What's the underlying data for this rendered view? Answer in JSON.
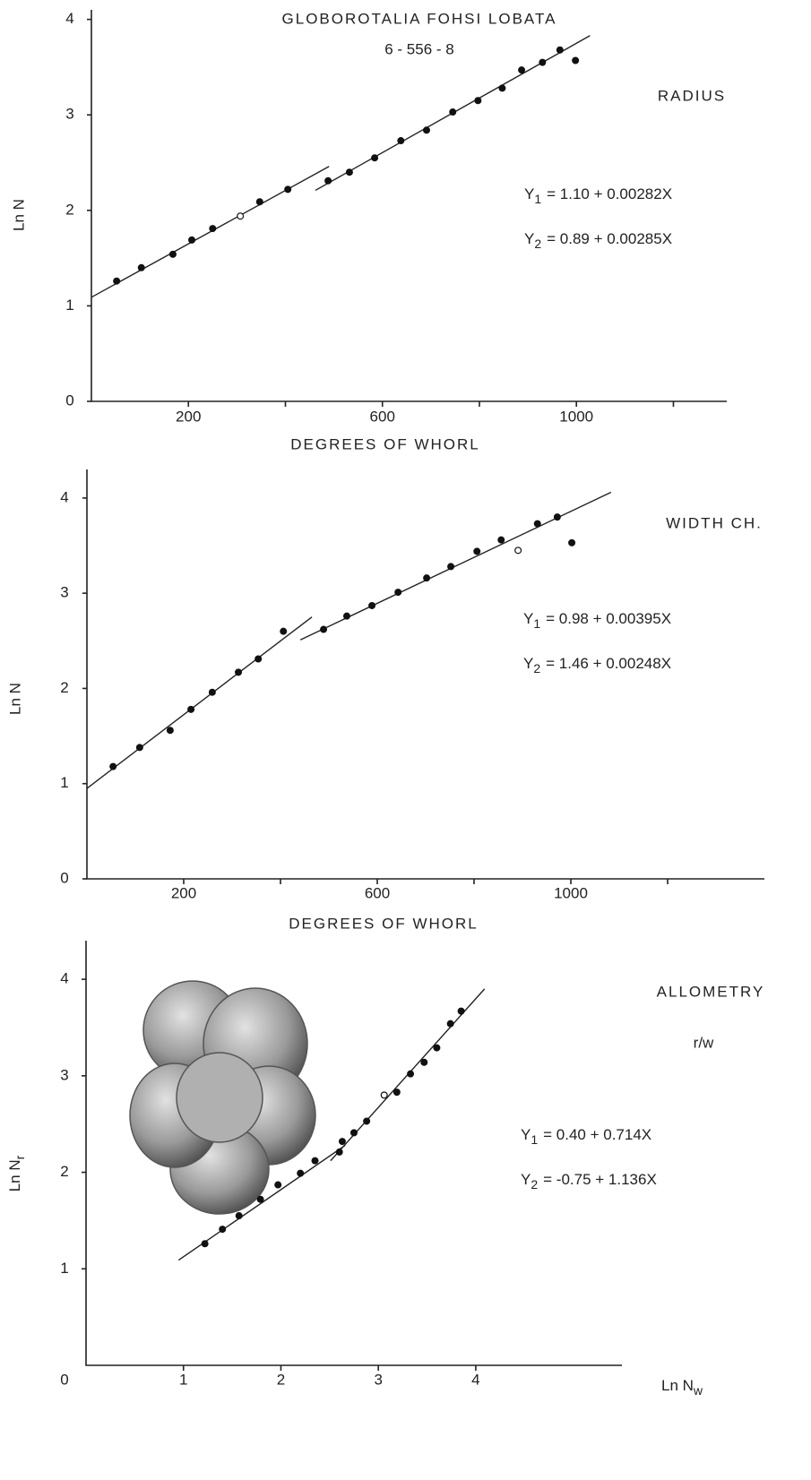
{
  "chart_data": [
    {
      "type": "scatter",
      "title": "GLOBOROTALIA FOHSI LOBATA",
      "subtitle": "6 - 556 - 8",
      "label": "RADIUS",
      "x_label": "DEGREES OF WHORL",
      "y_label": "Ln N",
      "equations": [
        {
          "lhs": "Y",
          "sub": "1",
          "rhs": "= 1.10 + 0.00282X"
        },
        {
          "lhs": "Y",
          "sub": "2",
          "rhs": "= 0.89 + 0.00285X"
        }
      ],
      "x": [
        52,
        103,
        168,
        207,
        250,
        307,
        347,
        405,
        488,
        532,
        584,
        638,
        691,
        745,
        797,
        847,
        887,
        930,
        966,
        998
      ],
      "values": [
        1.26,
        1.4,
        1.54,
        1.69,
        1.81,
        1.94,
        2.09,
        2.22,
        2.31,
        2.4,
        2.55,
        2.73,
        2.84,
        3.03,
        3.15,
        3.28,
        3.47,
        3.55,
        3.68,
        3.57
      ],
      "open_markers": [
        5
      ],
      "fit_lines": [
        {
          "x": [
            0,
            490
          ],
          "values": [
            1.09,
            2.46
          ]
        },
        {
          "x": [
            462,
            1028
          ],
          "values": [
            2.21,
            3.83
          ]
        }
      ],
      "xlim": [
        0,
        1310
      ],
      "ylim": [
        0,
        4.1
      ],
      "xticks": [
        200,
        600,
        1000
      ],
      "xminor_ticks": [
        400,
        800,
        1200
      ],
      "yticks": [
        0,
        1,
        2,
        3,
        4
      ]
    },
    {
      "type": "scatter",
      "label": "WIDTH CH.",
      "x_label": "DEGREES OF WHORL",
      "y_label": "Ln N",
      "equations": [
        {
          "lhs": "Y",
          "sub": "1",
          "rhs": "= 0.98 + 0.00395X"
        },
        {
          "lhs": "Y",
          "sub": "2",
          "rhs": "= 1.46 + 0.00248X"
        }
      ],
      "x": [
        54,
        109,
        172,
        215,
        259,
        313,
        354,
        406,
        489,
        537,
        589,
        643,
        702,
        752,
        806,
        856,
        891,
        931,
        972,
        1002
      ],
      "values": [
        1.18,
        1.38,
        1.56,
        1.78,
        1.96,
        2.17,
        2.31,
        2.6,
        2.62,
        2.76,
        2.87,
        3.01,
        3.16,
        3.28,
        3.44,
        3.56,
        3.45,
        3.73,
        3.8,
        3.53
      ],
      "open_markers": [
        16
      ],
      "fit_lines": [
        {
          "x": [
            0,
            465
          ],
          "values": [
            0.95,
            2.75
          ]
        },
        {
          "x": [
            441,
            1083
          ],
          "values": [
            2.51,
            4.06
          ]
        }
      ],
      "xlim": [
        0,
        1400
      ],
      "ylim": [
        0,
        4.3
      ],
      "xticks": [
        200,
        600,
        1000
      ],
      "xminor_ticks": [
        400,
        800,
        1200
      ],
      "yticks": [
        0,
        1,
        2,
        3,
        4
      ]
    },
    {
      "type": "scatter",
      "label": "ALLOMETRY",
      "subtitle": "r/w",
      "x_label": {
        "text": "Ln N",
        "sub": "w"
      },
      "y_label": {
        "text": "Ln N",
        "sub": "r"
      },
      "equations": [
        {
          "lhs": "Y",
          "sub": "1",
          "rhs": "= 0.40 + 0.714X"
        },
        {
          "lhs": "Y",
          "sub": "2",
          "rhs": "= -0.75 + 1.136X"
        }
      ],
      "x": [
        1.22,
        1.4,
        1.57,
        1.79,
        1.97,
        2.2,
        2.35,
        2.6,
        2.63,
        2.75,
        2.88,
        3.06,
        3.19,
        3.33,
        3.47,
        3.6,
        3.74,
        3.85
      ],
      "values": [
        1.26,
        1.41,
        1.55,
        1.72,
        1.87,
        1.99,
        2.12,
        2.21,
        2.32,
        2.41,
        2.53,
        2.8,
        2.83,
        3.02,
        3.14,
        3.29,
        3.54,
        3.67
      ],
      "open_markers": [
        11
      ],
      "fit_lines": [
        {
          "x": [
            0.95,
            2.66
          ],
          "values": [
            1.09,
            2.28
          ]
        },
        {
          "x": [
            2.51,
            4.09
          ],
          "values": [
            2.12,
            3.9
          ]
        }
      ],
      "xlim": [
        0,
        5.5
      ],
      "ylim": [
        0,
        4.4
      ],
      "xticks": [
        1,
        2,
        3,
        4
      ],
      "yticks": [
        1,
        2,
        3,
        4
      ],
      "origin_label": 0
    }
  ]
}
